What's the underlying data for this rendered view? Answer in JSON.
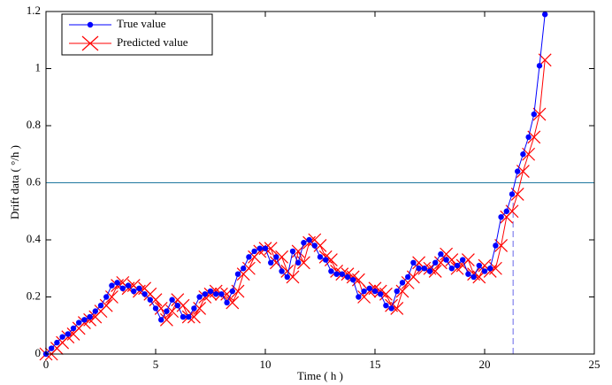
{
  "chart_data": {
    "type": "line",
    "xlabel": "Time ( h )",
    "ylabel": "Drift data ( °/h )",
    "xlim": [
      0,
      25
    ],
    "xticks": [
      0,
      5,
      10,
      15,
      20,
      25
    ],
    "ylim": [
      0,
      1.2
    ],
    "yticks": [
      0,
      0.2,
      0.4,
      0.6,
      0.8,
      1,
      1.2
    ],
    "legend": "upper left",
    "threshold": {
      "y": 0.6,
      "color": "#1f77a0"
    },
    "vline": {
      "x": 21.3,
      "y": [
        0,
        0.53
      ],
      "color": "#9a9af0"
    },
    "x": [
      0,
      0.25,
      0.5,
      0.75,
      1,
      1.25,
      1.5,
      1.75,
      2,
      2.25,
      2.5,
      2.75,
      3,
      3.25,
      3.5,
      3.75,
      4,
      4.25,
      4.5,
      4.75,
      5,
      5.25,
      5.5,
      5.75,
      6,
      6.25,
      6.5,
      6.75,
      7,
      7.25,
      7.5,
      7.75,
      8,
      8.25,
      8.5,
      8.75,
      9,
      9.25,
      9.5,
      9.75,
      10,
      10.25,
      10.5,
      10.75,
      11,
      11.25,
      11.5,
      11.75,
      12,
      12.25,
      12.5,
      12.75,
      13,
      13.25,
      13.5,
      13.75,
      14,
      14.25,
      14.5,
      14.75,
      15,
      15.25,
      15.5,
      15.75,
      16,
      16.25,
      16.5,
      16.75,
      17,
      17.25,
      17.5,
      17.75,
      18,
      18.25,
      18.5,
      18.75,
      19,
      19.25,
      19.5,
      19.75,
      20,
      20.25,
      20.5,
      20.75,
      21,
      21.25,
      21.5,
      21.75,
      22,
      22.25,
      22.5,
      22.75
    ],
    "series": [
      {
        "name": "True value",
        "color": "#0000ff",
        "marker": "circle",
        "values": [
          0,
          0.02,
          0.04,
          0.06,
          0.07,
          0.09,
          0.11,
          0.12,
          0.13,
          0.15,
          0.17,
          0.2,
          0.24,
          0.25,
          0.23,
          0.24,
          0.22,
          0.23,
          0.21,
          0.19,
          0.16,
          0.12,
          0.15,
          0.19,
          0.17,
          0.13,
          0.13,
          0.16,
          0.2,
          0.21,
          0.22,
          0.21,
          0.21,
          0.18,
          0.22,
          0.28,
          0.3,
          0.34,
          0.36,
          0.37,
          0.37,
          0.32,
          0.34,
          0.29,
          0.27,
          0.36,
          0.32,
          0.39,
          0.4,
          0.38,
          0.34,
          0.33,
          0.29,
          0.28,
          0.28,
          0.27,
          0.26,
          0.2,
          0.22,
          0.23,
          0.22,
          0.21,
          0.17,
          0.16,
          0.22,
          0.25,
          0.27,
          0.32,
          0.3,
          0.3,
          0.29,
          0.32,
          0.35,
          0.33,
          0.3,
          0.31,
          0.33,
          0.28,
          0.27,
          0.31,
          0.29,
          0.3,
          0.38,
          0.48,
          0.5,
          0.56,
          0.64,
          0.7,
          0.76,
          0.84,
          1.01,
          1.19
        ]
      },
      {
        "name": "Predicted value",
        "color": "#ff0000",
        "marker": "x",
        "values": [
          0,
          0,
          0.02,
          0.04,
          0.06,
          0.07,
          0.09,
          0.11,
          0.12,
          0.13,
          0.15,
          0.17,
          0.2,
          0.24,
          0.25,
          0.23,
          0.24,
          0.22,
          0.23,
          0.21,
          0.19,
          0.16,
          0.12,
          0.15,
          0.19,
          0.17,
          0.13,
          0.13,
          0.16,
          0.2,
          0.21,
          0.22,
          0.21,
          0.21,
          0.18,
          0.22,
          0.28,
          0.3,
          0.34,
          0.36,
          0.37,
          0.37,
          0.32,
          0.34,
          0.29,
          0.27,
          0.36,
          0.32,
          0.39,
          0.4,
          0.38,
          0.34,
          0.33,
          0.29,
          0.28,
          0.28,
          0.27,
          0.26,
          0.2,
          0.22,
          0.23,
          0.22,
          0.21,
          0.17,
          0.16,
          0.22,
          0.25,
          0.27,
          0.32,
          0.3,
          0.3,
          0.29,
          0.32,
          0.35,
          0.33,
          0.3,
          0.31,
          0.33,
          0.28,
          0.27,
          0.31,
          0.29,
          0.3,
          0.38,
          0.48,
          0.5,
          0.56,
          0.64,
          0.7,
          0.76,
          0.84,
          1.03
        ]
      }
    ]
  }
}
